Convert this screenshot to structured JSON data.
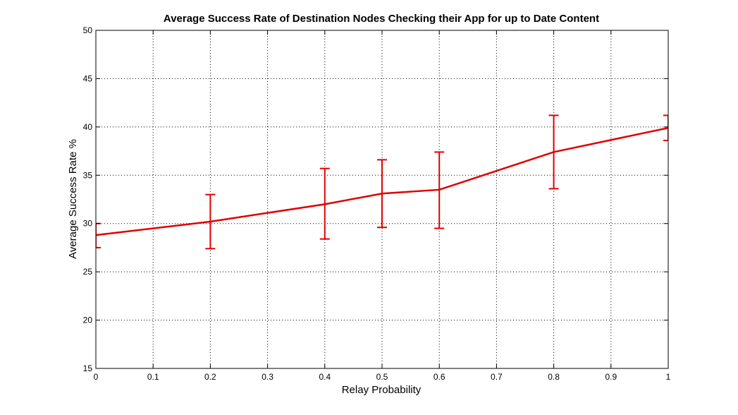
{
  "chart_data": {
    "type": "line",
    "title": "Average Success Rate of Destination Nodes Checking their App for up to Date Content",
    "xlabel": "Relay Probability",
    "ylabel": "Average Success Rate %",
    "xlim": [
      0,
      1
    ],
    "ylim": [
      15,
      50
    ],
    "xticks": [
      0,
      0.1,
      0.2,
      0.3,
      0.4,
      0.5,
      0.6,
      0.7,
      0.8,
      0.9,
      1
    ],
    "xtick_labels": [
      "0",
      "0.1",
      "0.2",
      "0.3",
      "0.4",
      "0.5",
      "0.6",
      "0.7",
      "0.8",
      "0.9",
      "1"
    ],
    "yticks": [
      15,
      20,
      25,
      30,
      35,
      40,
      45,
      50
    ],
    "ytick_labels": [
      "15",
      "20",
      "25",
      "30",
      "35",
      "40",
      "45",
      "50"
    ],
    "grid": true,
    "series": [
      {
        "color": "#e00000",
        "x": [
          0,
          0.2,
          0.4,
          0.5,
          0.6,
          0.8,
          1
        ],
        "y": [
          28.8,
          30.2,
          32.0,
          33.1,
          33.5,
          37.4,
          39.9
        ],
        "err_low": [
          27.5,
          27.4,
          28.4,
          29.6,
          29.5,
          33.6,
          38.6
        ],
        "err_high": [
          30.0,
          33.0,
          35.7,
          36.6,
          37.4,
          41.2,
          41.2
        ]
      }
    ]
  }
}
